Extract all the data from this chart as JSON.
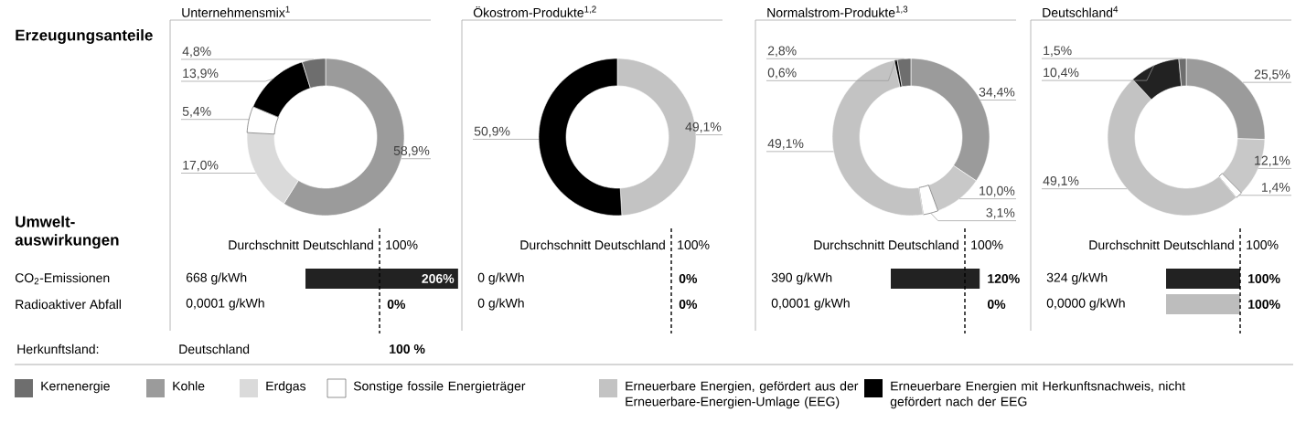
{
  "chart_data": [
    {
      "type": "donut",
      "title": "Unternehmensmix$^{1}$",
      "categories": [
        "Kernenergie",
        "Kohle",
        "Erdgas",
        "Sonstige fossile Energieträger",
        "Erneuerbare Energien, gefördert aus der Erneuerbare-Energien-Umlage (EEG)",
        "Erneuerbare Energien mit Herkunftsnachweis, nicht gefördert nach der EEG"
      ],
      "values": [
        4.8,
        58.9,
        17.0,
        5.4,
        null,
        13.9
      ],
      "colors": [
        "#6e6e6e",
        "#9b9b9b",
        "#dadada",
        "#ffffff",
        "#c3c3c3",
        "#000000"
      ],
      "value_labels": [
        "4,8%",
        "58,9%",
        "17,0%",
        "5,4%",
        null,
        "13,9%"
      ],
      "legend": "bottom",
      "annotations": [
        "Erzeugungsanteile",
        "Herkunftsland:",
        "Deutschland",
        "100 %"
      ]
    },
    {
      "type": "donut",
      "title": "Ökostrom-Produkte$^{1,2}$",
      "categories": [
        null,
        null,
        null,
        null,
        null,
        null
      ],
      "values": [
        null,
        null,
        null,
        null,
        49.1,
        50.9
      ],
      "colors": [
        "#6e6e6e",
        "#9b9b9b",
        "#dadada",
        "#ffffff",
        "#c3c3c3",
        "#000000"
      ],
      "value_labels": [
        null,
        null,
        null,
        null,
        "49,1%",
        "50,9%"
      ]
    },
    {
      "type": "donut",
      "title": "Normalstrom-Produkte$^{1,3}$",
      "categories": [
        null,
        null,
        null,
        null,
        null,
        null
      ],
      "values": [
        2.8,
        34.4,
        10.0,
        3.1,
        49.1,
        0.6
      ],
      "colors": [
        "#6e6e6e",
        "#9b9b9b",
        "#c8c8c8",
        "#ffffff",
        "#c3c3c3",
        "#000000"
      ],
      "value_labels": [
        "2,8%",
        "34,4%",
        "10,0%",
        "3,1%",
        "49,1%",
        "0,6%"
      ]
    },
    {
      "type": "donut",
      "title": "Deutschland$^{4}$",
      "categories": [
        null,
        null,
        null,
        null,
        null,
        null
      ],
      "values": [
        1.5,
        25.5,
        12.1,
        1.4,
        49.1,
        10.4
      ],
      "colors": [
        "#6e6e6e",
        "#9b9b9b",
        "#c8c8c8",
        "#ffffff",
        "#c3c3c3",
        "#222222"
      ],
      "value_labels": [
        "1,5%",
        "25,5%",
        "12,1%",
        "1,4%",
        "49,1%",
        "10,4%"
      ]
    },
    {
      "type": "other",
      "title": "Umwelt-auswirkungen",
      "categories": [
        "CO$_{2}$-Emissionen",
        "Radioaktiver Abfall"
      ],
      "values": [
        206,
        0
      ],
      "colors": [
        "#222222",
        "#222222"
      ],
      "value_labels": [
        "206%",
        "0%"
      ],
      "annotations": [
        "Durchschnitt Deutschland",
        "100%",
        "668 g/kWh",
        "0,0001 g/kWh"
      ]
    },
    {
      "type": "other",
      "categories": [
        null,
        null
      ],
      "values": [
        0,
        0
      ],
      "colors": [
        "#222222",
        "#222222"
      ],
      "value_labels": [
        "0%",
        "0%"
      ],
      "annotations": [
        "Durchschnitt Deutschland",
        "100%",
        "0 g/kWh",
        "0 g/kWh"
      ]
    },
    {
      "type": "other",
      "categories": [
        null,
        null
      ],
      "values": [
        120,
        0
      ],
      "colors": [
        "#222222",
        "#222222"
      ],
      "value_labels": [
        "120%",
        "0%"
      ],
      "annotations": [
        "Durchschnitt Deutschland",
        "100%",
        "390 g/kWh",
        "0,0001 g/kWh"
      ]
    },
    {
      "type": "other",
      "categories": [
        null,
        null
      ],
      "values": [
        100,
        100
      ],
      "colors": [
        "#222222",
        "#bdbdbd"
      ],
      "value_labels": [
        "100%",
        "100%"
      ],
      "annotations": [
        "Durchschnitt Deutschland",
        "100%",
        "324 g/kWh",
        "0,0000 g/kWh"
      ]
    }
  ]
}
